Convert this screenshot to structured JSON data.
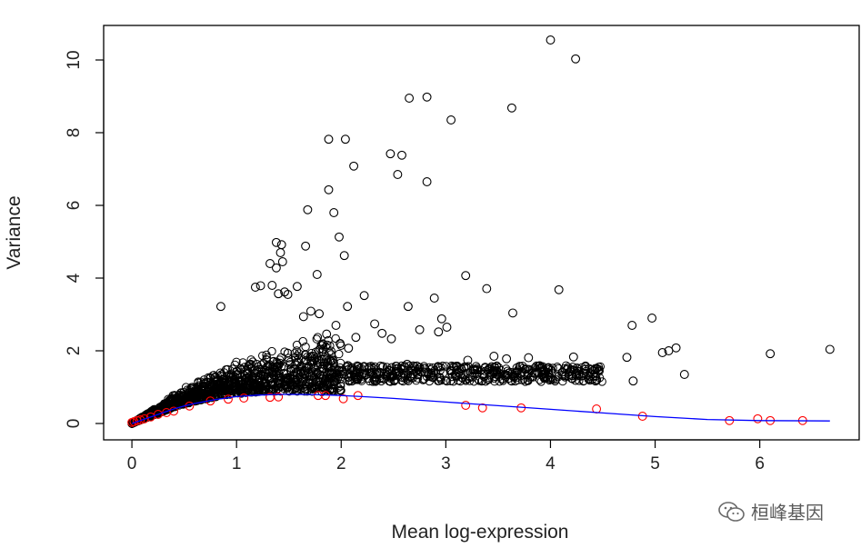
{
  "watermark": {
    "text": "桓峰基因",
    "icon": "wechat-icon"
  },
  "chart_data": {
    "type": "scatter",
    "title": "",
    "xlabel": "Mean log-expression",
    "ylabel": "Variance",
    "xlim": [
      -0.27,
      6.95
    ],
    "ylim": [
      -0.45,
      10.95
    ],
    "xticks": [
      0,
      1,
      2,
      3,
      4,
      5,
      6
    ],
    "yticks": [
      0,
      2,
      4,
      6,
      8,
      10
    ],
    "grid": false,
    "legend": "none",
    "colors": {
      "points": "#000000",
      "spike_ins": "#ff0000",
      "trend": "#0000ff",
      "frame": "#000000"
    },
    "series": [
      {
        "marker": "open-circle",
        "color": "#000000",
        "points": [
          [
            4.0,
            10.55
          ],
          [
            4.24,
            10.03
          ],
          [
            2.65,
            8.95
          ],
          [
            2.82,
            8.98
          ],
          [
            3.63,
            8.68
          ],
          [
            3.05,
            8.35
          ],
          [
            1.88,
            7.82
          ],
          [
            2.04,
            7.82
          ],
          [
            2.47,
            7.42
          ],
          [
            2.58,
            7.38
          ],
          [
            2.12,
            7.08
          ],
          [
            2.54,
            6.85
          ],
          [
            2.82,
            6.65
          ],
          [
            1.88,
            6.43
          ],
          [
            1.68,
            5.88
          ],
          [
            1.93,
            5.8
          ],
          [
            1.98,
            5.13
          ],
          [
            2.03,
            4.62
          ],
          [
            1.38,
            4.98
          ],
          [
            1.43,
            4.92
          ],
          [
            1.66,
            4.88
          ],
          [
            1.42,
            4.7
          ],
          [
            1.44,
            4.45
          ],
          [
            1.38,
            4.28
          ],
          [
            1.32,
            4.4
          ],
          [
            1.77,
            4.1
          ],
          [
            3.19,
            4.07
          ],
          [
            3.39,
            3.71
          ],
          [
            4.08,
            3.68
          ],
          [
            1.18,
            3.75
          ],
          [
            1.23,
            3.79
          ],
          [
            1.4,
            3.57
          ],
          [
            1.34,
            3.8
          ],
          [
            1.58,
            3.77
          ],
          [
            1.49,
            3.55
          ],
          [
            1.46,
            3.62
          ],
          [
            2.22,
            3.52
          ],
          [
            2.06,
            3.22
          ],
          [
            2.89,
            3.45
          ],
          [
            2.64,
            3.22
          ],
          [
            3.64,
            3.04
          ],
          [
            0.85,
            3.22
          ],
          [
            1.71,
            3.09
          ],
          [
            1.79,
            3.02
          ],
          [
            1.64,
            2.94
          ],
          [
            2.32,
            2.74
          ],
          [
            2.96,
            2.88
          ],
          [
            3.01,
            2.65
          ],
          [
            2.93,
            2.52
          ],
          [
            2.39,
            2.48
          ],
          [
            2.48,
            2.33
          ],
          [
            2.75,
            2.58
          ],
          [
            4.97,
            2.9
          ],
          [
            4.78,
            2.7
          ],
          [
            5.2,
            2.08
          ],
          [
            5.13,
            2.0
          ],
          [
            5.07,
            1.95
          ],
          [
            5.28,
            1.35
          ],
          [
            4.73,
            1.82
          ],
          [
            4.79,
            1.17
          ],
          [
            6.1,
            1.92
          ],
          [
            6.67,
            2.04
          ],
          [
            4.22,
            1.83
          ],
          [
            3.98,
            1.54
          ],
          [
            4.14,
            1.28
          ],
          [
            4.43,
            1.17
          ],
          [
            3.46,
            1.85
          ],
          [
            3.79,
            1.81
          ],
          [
            3.58,
            1.78
          ],
          [
            3.21,
            1.74
          ],
          [
            2.63,
            1.63
          ],
          [
            2.74,
            1.48
          ],
          [
            1.95,
            2.7
          ],
          [
            1.86,
            2.46
          ],
          [
            2.14,
            2.37
          ],
          [
            1.99,
            2.2
          ],
          [
            2.07,
            2.07
          ],
          [
            1.83,
            2.04
          ]
        ]
      },
      {
        "marker": "open-circle",
        "color": "#ff0000",
        "points": [
          [
            0.0,
            0.03
          ],
          [
            0.02,
            0.05
          ],
          [
            0.05,
            0.08
          ],
          [
            0.08,
            0.1
          ],
          [
            0.12,
            0.13
          ],
          [
            0.18,
            0.18
          ],
          [
            0.25,
            0.25
          ],
          [
            0.33,
            0.3
          ],
          [
            0.4,
            0.34
          ],
          [
            0.55,
            0.48
          ],
          [
            0.75,
            0.62
          ],
          [
            0.92,
            0.67
          ],
          [
            1.07,
            0.7
          ],
          [
            1.32,
            0.72
          ],
          [
            1.4,
            0.73
          ],
          [
            1.78,
            0.77
          ],
          [
            1.85,
            0.77
          ],
          [
            2.02,
            0.68
          ],
          [
            2.16,
            0.77
          ],
          [
            3.19,
            0.5
          ],
          [
            3.35,
            0.43
          ],
          [
            3.72,
            0.43
          ],
          [
            4.44,
            0.4
          ],
          [
            4.88,
            0.2
          ],
          [
            5.71,
            0.08
          ],
          [
            5.98,
            0.13
          ],
          [
            6.1,
            0.08
          ],
          [
            6.41,
            0.08
          ]
        ]
      }
    ],
    "trend": [
      [
        0.0,
        0.0
      ],
      [
        0.1,
        0.1
      ],
      [
        0.2,
        0.2
      ],
      [
        0.3,
        0.3
      ],
      [
        0.4,
        0.4
      ],
      [
        0.5,
        0.48
      ],
      [
        0.6,
        0.55
      ],
      [
        0.8,
        0.66
      ],
      [
        1.0,
        0.74
      ],
      [
        1.2,
        0.78
      ],
      [
        1.4,
        0.8
      ],
      [
        1.6,
        0.8
      ],
      [
        1.8,
        0.79
      ],
      [
        2.0,
        0.77
      ],
      [
        2.2,
        0.74
      ],
      [
        2.5,
        0.69
      ],
      [
        3.0,
        0.59
      ],
      [
        3.5,
        0.49
      ],
      [
        4.0,
        0.39
      ],
      [
        4.5,
        0.29
      ],
      [
        5.0,
        0.19
      ],
      [
        5.5,
        0.11
      ],
      [
        6.0,
        0.08
      ],
      [
        6.67,
        0.07
      ]
    ]
  }
}
